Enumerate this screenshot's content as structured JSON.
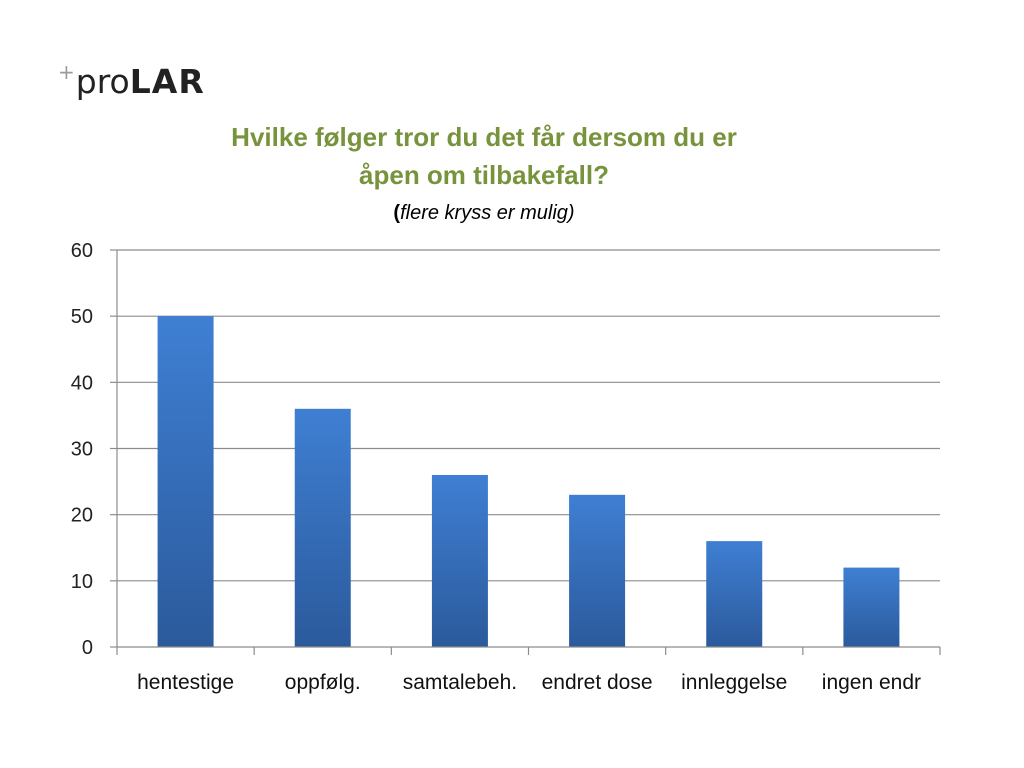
{
  "logo": {
    "prefix": "+",
    "light": "pro",
    "bold": "LAR"
  },
  "title_line1": "Hvilke følger tror du det får dersom du er",
  "title_line2": "åpen om tilbakefall?",
  "subtitle_open": "(",
  "subtitle_text": "flere kryss er mulig)",
  "colors": {
    "title": "#77933c",
    "bar_top": "#3f7fd3",
    "bar_bottom": "#2b5a9c",
    "grid": "#8c8c8c"
  },
  "chart_data": {
    "type": "bar",
    "categories": [
      "hentestige",
      "oppfølg.",
      "samtalebeh.",
      "endret dose",
      "innleggelse",
      "ingen endr"
    ],
    "values": [
      50,
      36,
      26,
      23,
      16,
      12
    ],
    "title": "Hvilke følger tror du det får dersom du er åpen om tilbakefall?",
    "subtitle": "(flere kryss er mulig)",
    "xlabel": "",
    "ylabel": "",
    "ylim": [
      0,
      60
    ],
    "yticks": [
      0,
      10,
      20,
      30,
      40,
      50,
      60
    ],
    "grid": true,
    "legend": "none"
  }
}
